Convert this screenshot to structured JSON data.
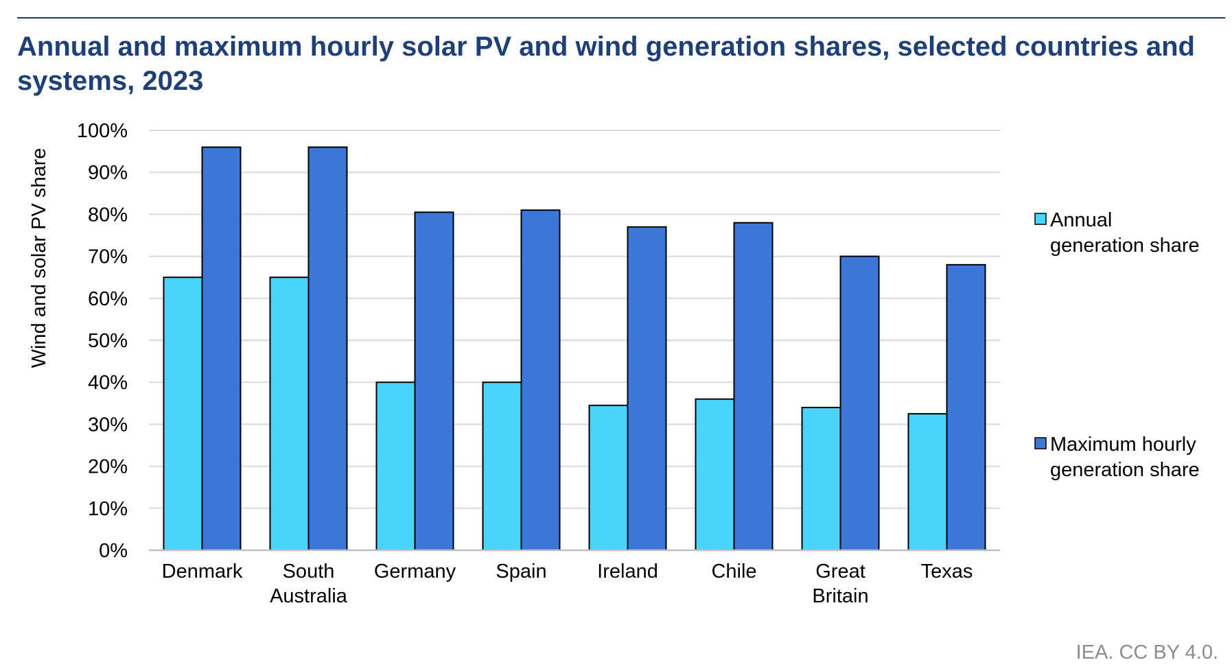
{
  "chart_data": {
    "type": "bar",
    "title": "Annual and maximum hourly solar PV and wind generation shares, selected countries and systems, 2023",
    "ylabel": "Wind and solar PV share",
    "xlabel": "",
    "ylim": [
      0,
      100
    ],
    "y_ticks": [
      "0%",
      "10%",
      "20%",
      "30%",
      "40%",
      "50%",
      "60%",
      "70%",
      "80%",
      "90%",
      "100%"
    ],
    "categories": [
      "Denmark",
      "South Australia",
      "Germany",
      "Spain",
      "Ireland",
      "Chile",
      "Great Britain",
      "Texas"
    ],
    "category_lines": [
      [
        "Denmark"
      ],
      [
        "South",
        "Australia"
      ],
      [
        "Germany"
      ],
      [
        "Spain"
      ],
      [
        "Ireland"
      ],
      [
        "Chile"
      ],
      [
        "Great",
        "Britain"
      ],
      [
        "Texas"
      ]
    ],
    "series": [
      {
        "name": "Annual generation share",
        "legend_lines": [
          "Annual",
          "generation share"
        ],
        "color": "#48d4fb",
        "values": [
          65,
          65,
          40,
          40,
          34.5,
          36,
          34,
          32.5
        ]
      },
      {
        "name": "Maximum hourly generation share",
        "legend_lines": [
          "Maximum hourly",
          "generation share"
        ],
        "color": "#3c78d8",
        "values": [
          96,
          96,
          80.5,
          81,
          77,
          78,
          70,
          68
        ]
      }
    ],
    "grid": true,
    "legend_position": "right"
  },
  "credit": "IEA. CC BY 4.0."
}
